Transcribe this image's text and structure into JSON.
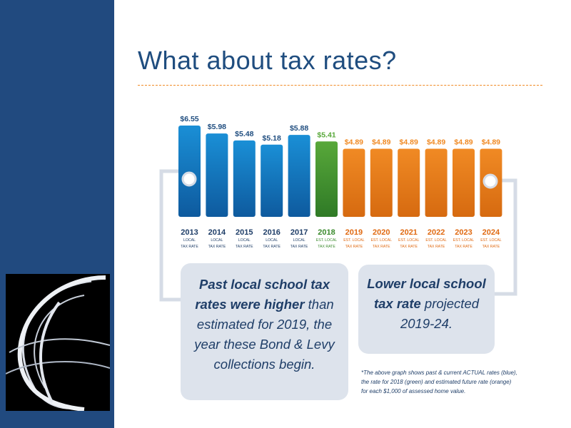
{
  "slide": {
    "title": "What about tax rates?",
    "colors": {
      "sidebar": "#214a7f",
      "title": "#1f4d7f",
      "divider": "#f08a24",
      "blue": "#1a8fd6",
      "green": "#58a83a",
      "orange": "#f08a24",
      "callout_bg": "#dde3ec",
      "connector": "#d6dce6"
    },
    "logo_icon": "globe-swirl-icon"
  },
  "chart_data": {
    "type": "bar",
    "categories": [
      "2013",
      "2014",
      "2015",
      "2016",
      "2017",
      "2018",
      "2019",
      "2020",
      "2021",
      "2022",
      "2023",
      "2024"
    ],
    "values": [
      6.55,
      5.98,
      5.48,
      5.18,
      5.88,
      5.41,
      4.89,
      4.89,
      4.89,
      4.89,
      4.89,
      4.89
    ],
    "value_labels": [
      "$6.55",
      "$5.98",
      "$5.48",
      "$5.18",
      "$5.88",
      "$5.41",
      "$4.89",
      "$4.89",
      "$4.89",
      "$4.89",
      "$4.89",
      "$4.89"
    ],
    "sublabels": [
      [
        "LOCAL",
        "TAX RATE"
      ],
      [
        "LOCAL",
        "TAX RATE"
      ],
      [
        "LOCAL",
        "TAX RATE"
      ],
      [
        "LOCAL",
        "TAX RATE"
      ],
      [
        "LOCAL",
        "TAX RATE"
      ],
      [
        "EST. LOCAL",
        "TAX RATE"
      ],
      [
        "EST. LOCAL",
        "TAX RATE"
      ],
      [
        "EST. LOCAL",
        "TAX RATE"
      ],
      [
        "EST. LOCAL",
        "TAX RATE"
      ],
      [
        "EST. LOCAL",
        "TAX RATE"
      ],
      [
        "EST. LOCAL",
        "TAX RATE"
      ],
      [
        "EST. LOCAL",
        "TAX RATE"
      ]
    ],
    "bar_colors": [
      "blue",
      "blue",
      "blue",
      "blue",
      "blue",
      "green",
      "orange",
      "orange",
      "orange",
      "orange",
      "orange",
      "orange"
    ],
    "ylim": [
      0,
      6.55
    ],
    "grid": false
  },
  "callouts": {
    "past": [
      [
        {
          "t": "Past local school tax",
          "b": true
        }
      ],
      [
        {
          "t": "rates were higher",
          "b": true
        },
        {
          "t": " than",
          "b": false
        }
      ],
      [
        {
          "t": "estimated for 2019, the",
          "b": false
        }
      ],
      [
        {
          "t": "year these Bond & Levy",
          "b": false
        }
      ],
      [
        {
          "t": "collections begin.",
          "b": false
        }
      ]
    ],
    "lower": [
      [
        {
          "t": "Lower local school",
          "b": true
        }
      ],
      [
        {
          "t": "tax rate",
          "b": true
        },
        {
          "t": " projected",
          "b": false
        }
      ],
      [
        {
          "t": "2019-24.",
          "b": false
        }
      ]
    ]
  },
  "footnote": "*The above graph shows past & current ACTUAL rates (blue), the rate for 2018 (green) and estimated future rate (orange) for each $1,000 of assessed home value."
}
